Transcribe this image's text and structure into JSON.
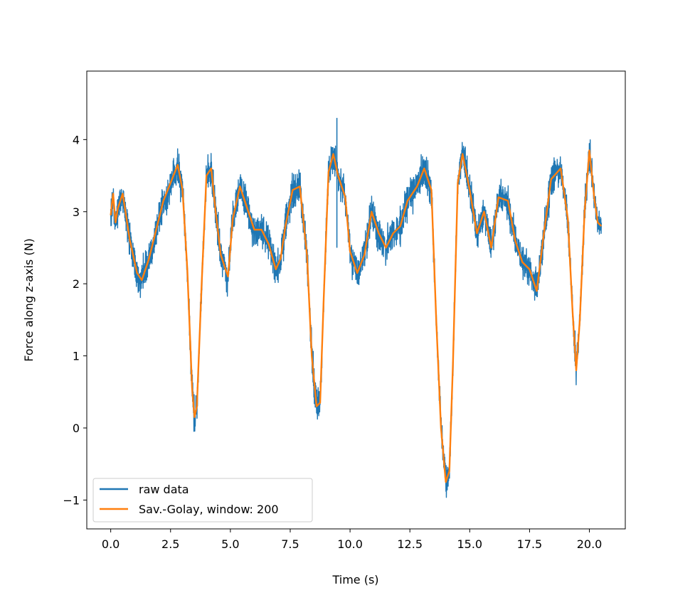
{
  "chart_data": {
    "type": "line",
    "title": "",
    "xlabel": "Time (s)",
    "ylabel": "Force along z-axis (N)",
    "xlim": [
      -1.0,
      21.5
    ],
    "ylim": [
      -1.4,
      4.95
    ],
    "xticks": [
      0.0,
      2.5,
      5.0,
      7.5,
      10.0,
      12.5,
      15.0,
      17.5,
      20.0
    ],
    "xtick_labels": [
      "0.0",
      "2.5",
      "5.0",
      "7.5",
      "10.0",
      "12.5",
      "15.0",
      "17.5",
      "20.0"
    ],
    "yticks": [
      -1,
      0,
      1,
      2,
      3,
      4
    ],
    "ytick_labels": [
      "−1",
      "0",
      "1",
      "2",
      "3",
      "4"
    ],
    "grid": false,
    "legend_position": "lower-left",
    "series": [
      {
        "name": "raw data",
        "color": "#1f77b4",
        "noise_band": 0.28,
        "noise_spikes": [
          {
            "x": 9.45,
            "y": 4.3
          },
          {
            "x": 9.45,
            "y": 2.5
          }
        ],
        "x": [
          0.0,
          0.1,
          0.2,
          0.3,
          0.5,
          0.8,
          1.1,
          1.3,
          1.6,
          1.9,
          2.2,
          2.5,
          2.8,
          3.0,
          3.2,
          3.4,
          3.5,
          3.6,
          3.8,
          4.0,
          4.2,
          4.4,
          4.6,
          4.9,
          5.1,
          5.4,
          5.7,
          6.0,
          6.3,
          6.6,
          6.9,
          7.1,
          7.3,
          7.6,
          7.9,
          8.2,
          8.4,
          8.6,
          8.75,
          8.9,
          9.1,
          9.3,
          9.5,
          9.8,
          10.0,
          10.3,
          10.6,
          10.9,
          11.2,
          11.5,
          11.8,
          12.1,
          12.4,
          12.8,
          13.1,
          13.4,
          13.6,
          13.8,
          14.0,
          14.15,
          14.3,
          14.5,
          14.7,
          15.0,
          15.3,
          15.6,
          15.9,
          16.2,
          16.6,
          16.9,
          17.2,
          17.5,
          17.8,
          18.1,
          18.4,
          18.8,
          19.1,
          19.3,
          19.45,
          19.6,
          19.8,
          20.0,
          20.2,
          20.35,
          20.5
        ],
        "y": [
          2.95,
          3.2,
          2.85,
          3.05,
          3.2,
          2.6,
          2.1,
          2.05,
          2.35,
          2.75,
          3.1,
          3.35,
          3.6,
          3.3,
          2.2,
          0.55,
          0.15,
          0.3,
          2.0,
          3.5,
          3.6,
          2.95,
          2.4,
          2.1,
          2.9,
          3.35,
          3.05,
          2.7,
          2.75,
          2.55,
          2.2,
          2.35,
          2.8,
          3.3,
          3.35,
          2.4,
          1.0,
          0.3,
          0.35,
          1.8,
          3.55,
          3.8,
          3.5,
          3.2,
          2.45,
          2.15,
          2.4,
          3.0,
          2.7,
          2.5,
          2.7,
          2.8,
          3.15,
          3.35,
          3.6,
          3.3,
          1.5,
          0.0,
          -0.75,
          -0.6,
          0.9,
          3.4,
          3.8,
          3.3,
          2.7,
          3.0,
          2.5,
          3.2,
          3.15,
          2.6,
          2.3,
          2.2,
          1.9,
          2.7,
          3.45,
          3.6,
          2.9,
          1.6,
          0.8,
          1.5,
          3.0,
          3.85,
          3.2,
          2.85,
          2.8
        ]
      },
      {
        "name": "Sav.-Golay, window: 200",
        "color": "#ff7f0e",
        "x": [
          0.0,
          0.1,
          0.2,
          0.3,
          0.5,
          0.8,
          1.1,
          1.3,
          1.6,
          1.9,
          2.2,
          2.5,
          2.8,
          3.0,
          3.2,
          3.4,
          3.5,
          3.6,
          3.8,
          4.0,
          4.2,
          4.4,
          4.6,
          4.9,
          5.1,
          5.4,
          5.7,
          6.0,
          6.3,
          6.6,
          6.9,
          7.1,
          7.3,
          7.6,
          7.9,
          8.2,
          8.4,
          8.6,
          8.75,
          8.9,
          9.1,
          9.3,
          9.5,
          9.8,
          10.0,
          10.3,
          10.6,
          10.9,
          11.2,
          11.5,
          11.8,
          12.1,
          12.4,
          12.8,
          13.1,
          13.4,
          13.6,
          13.8,
          14.0,
          14.15,
          14.3,
          14.5,
          14.7,
          15.0,
          15.3,
          15.6,
          15.9,
          16.2,
          16.6,
          16.9,
          17.2,
          17.5,
          17.8,
          18.1,
          18.4,
          18.8,
          19.1,
          19.3,
          19.45,
          19.6,
          19.8,
          20.0,
          20.2,
          20.35,
          20.5
        ],
        "y": [
          2.95,
          3.25,
          2.85,
          3.05,
          3.25,
          2.6,
          2.15,
          2.05,
          2.35,
          2.75,
          3.15,
          3.4,
          3.65,
          3.3,
          2.2,
          0.55,
          0.15,
          0.3,
          2.0,
          3.5,
          3.6,
          2.95,
          2.4,
          2.1,
          2.9,
          3.35,
          3.05,
          2.75,
          2.75,
          2.55,
          2.2,
          2.35,
          2.8,
          3.3,
          3.35,
          2.4,
          1.0,
          0.3,
          0.35,
          1.8,
          3.55,
          3.8,
          3.5,
          3.2,
          2.45,
          2.15,
          2.4,
          3.0,
          2.7,
          2.5,
          2.7,
          2.8,
          3.15,
          3.35,
          3.6,
          3.3,
          1.5,
          0.0,
          -0.75,
          -0.6,
          0.9,
          3.4,
          3.8,
          3.3,
          2.7,
          3.0,
          2.5,
          3.2,
          3.15,
          2.6,
          2.3,
          2.2,
          1.9,
          2.7,
          3.45,
          3.6,
          2.9,
          1.6,
          0.8,
          1.5,
          3.0,
          3.85,
          3.2,
          2.85,
          2.8
        ]
      }
    ]
  }
}
